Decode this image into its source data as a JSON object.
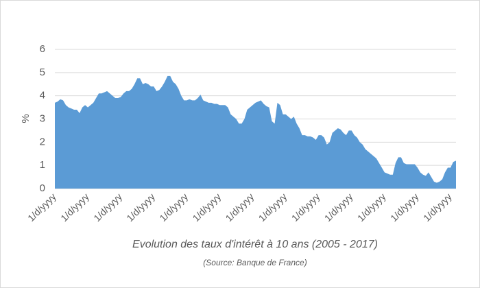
{
  "chart_data": {
    "type": "area",
    "xlabel": "Evolution des taux d'intérêt à 10 ans (2005 - 2017)",
    "subtitle": "(Source: Banque de France)",
    "ylabel": "%",
    "color": "#5b9bd5",
    "grid": true,
    "ylim": [
      0,
      6
    ],
    "yticks": [
      0,
      1,
      2,
      3,
      4,
      5,
      6
    ],
    "categories": [
      "1/d/yyyy",
      null,
      null,
      null,
      null,
      null,
      null,
      null,
      null,
      null,
      null,
      null,
      "1/d/yyyy",
      null,
      null,
      null,
      null,
      null,
      null,
      null,
      null,
      null,
      null,
      null,
      "1/d/yyyy",
      null,
      null,
      null,
      null,
      null,
      null,
      null,
      null,
      null,
      null,
      null,
      "1/d/yyyy",
      null,
      null,
      null,
      null,
      null,
      null,
      null,
      null,
      null,
      null,
      null,
      "1/d/yyyy",
      null,
      null,
      null,
      null,
      null,
      null,
      null,
      null,
      null,
      null,
      null,
      "1/d/yyyy",
      null,
      null,
      null,
      null,
      null,
      null,
      null,
      null,
      null,
      null,
      null,
      "1/d/yyyy",
      null,
      null,
      null,
      null,
      null,
      null,
      null,
      null,
      null,
      null,
      null,
      "1/d/yyyy",
      null,
      null,
      null,
      null,
      null,
      null,
      null,
      null,
      null,
      null,
      null,
      "1/d/yyyy",
      null,
      null,
      null,
      null,
      null,
      null,
      null,
      null,
      null,
      null,
      null,
      "1/d/yyyy",
      null,
      null,
      null,
      null,
      null,
      null,
      null,
      null,
      null,
      null,
      null,
      "1/d/yyyy",
      null,
      null,
      null,
      null,
      null,
      null,
      null,
      null,
      null,
      null,
      null,
      "1/d/yyyy",
      null,
      null,
      null,
      null,
      null,
      null,
      null,
      null,
      null,
      null,
      null,
      "1/d/yyyy",
      null,
      null
    ],
    "values": [
      3.7,
      3.75,
      3.85,
      3.8,
      3.6,
      3.5,
      3.45,
      3.4,
      3.4,
      3.25,
      3.5,
      3.6,
      3.5,
      3.6,
      3.7,
      3.9,
      4.1,
      4.1,
      4.15,
      4.2,
      4.1,
      4.0,
      3.9,
      3.9,
      3.95,
      4.1,
      4.2,
      4.2,
      4.3,
      4.5,
      4.75,
      4.75,
      4.5,
      4.55,
      4.5,
      4.4,
      4.4,
      4.2,
      4.25,
      4.4,
      4.6,
      4.85,
      4.85,
      4.6,
      4.5,
      4.3,
      4.0,
      3.8,
      3.8,
      3.85,
      3.8,
      3.8,
      3.9,
      4.05,
      3.8,
      3.75,
      3.7,
      3.7,
      3.65,
      3.65,
      3.6,
      3.6,
      3.6,
      3.5,
      3.2,
      3.1,
      3.0,
      2.8,
      2.8,
      3.0,
      3.4,
      3.5,
      3.6,
      3.7,
      3.75,
      3.8,
      3.65,
      3.55,
      3.5,
      2.9,
      2.8,
      3.7,
      3.6,
      3.2,
      3.2,
      3.1,
      3.0,
      3.1,
      2.8,
      2.6,
      2.3,
      2.3,
      2.25,
      2.25,
      2.2,
      2.1,
      2.3,
      2.3,
      2.2,
      1.9,
      2.0,
      2.4,
      2.5,
      2.6,
      2.55,
      2.4,
      2.3,
      2.5,
      2.5,
      2.3,
      2.2,
      2.0,
      1.9,
      1.7,
      1.6,
      1.5,
      1.4,
      1.3,
      1.1,
      0.9,
      0.7,
      0.65,
      0.6,
      0.6,
      1.1,
      1.35,
      1.35,
      1.1,
      1.05,
      1.05,
      1.05,
      1.05,
      0.9,
      0.7,
      0.6,
      0.55,
      0.7,
      0.5,
      0.3,
      0.25,
      0.3,
      0.4,
      0.7,
      0.9,
      0.9,
      1.15,
      1.2
    ]
  }
}
